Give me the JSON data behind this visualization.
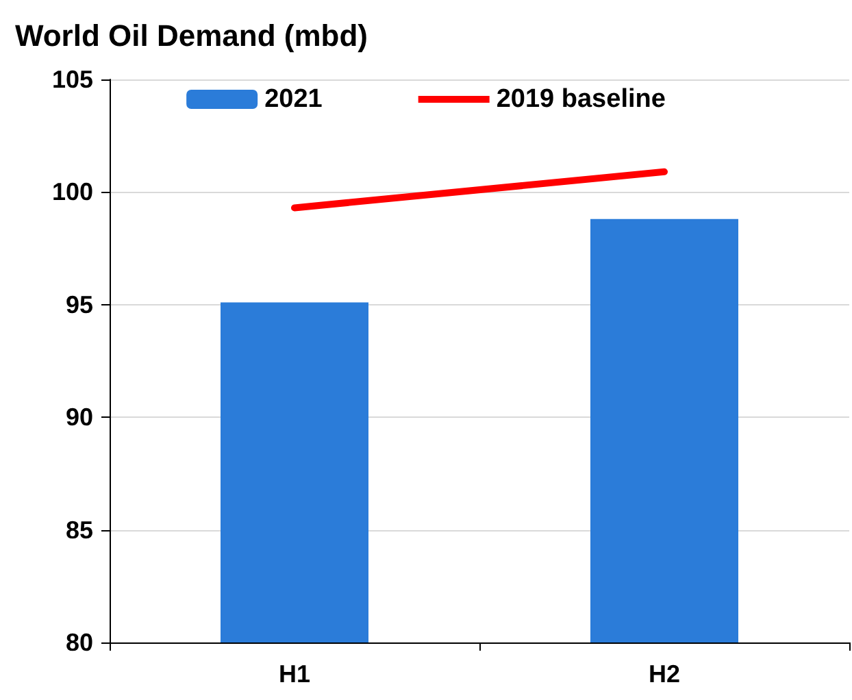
{
  "chart_data": {
    "type": "bar",
    "title": "World Oil Demand (mbd)",
    "categories": [
      "H1",
      "H2"
    ],
    "series": [
      {
        "name": "2021",
        "color": "#2b7cd9",
        "values": [
          95.1,
          98.8
        ]
      },
      {
        "name": "2019 baseline",
        "type": "line",
        "color": "#ff0000",
        "values": [
          99.3,
          100.9
        ]
      }
    ],
    "ylim": [
      80,
      105
    ],
    "yticks": [
      80,
      85,
      90,
      95,
      100,
      105
    ],
    "grid": "y",
    "legend": "top",
    "marker": "none"
  }
}
